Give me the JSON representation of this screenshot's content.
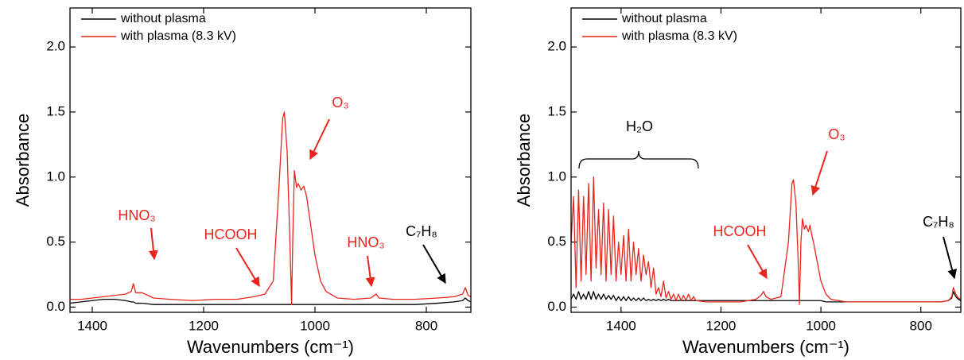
{
  "chart_data": [
    {
      "type": "line",
      "x_label": "Wavenumbers (cm⁻¹)",
      "y_label": "Absorbance",
      "xlim": [
        1440,
        720
      ],
      "xticks": [
        1400,
        1200,
        1000,
        800
      ],
      "ylim": [
        -0.04,
        2.3
      ],
      "yticks": [
        {
          "value": 0,
          "label": "0.0"
        },
        0.5,
        {
          "value": 1,
          "label": "1.0"
        },
        1.5,
        {
          "value": 2,
          "label": "2.0"
        }
      ],
      "legend": "upper left",
      "annotations": [
        "HNO₃",
        "HCOOH",
        "O₃",
        "HNO₃",
        "C₇H₈"
      ],
      "x": [
        1440,
        1420,
        1400,
        1380,
        1360,
        1340,
        1330,
        1326,
        1322,
        1310,
        1290,
        1260,
        1220,
        1180,
        1140,
        1110,
        1090,
        1075,
        1065,
        1058,
        1055,
        1050,
        1045,
        1042,
        1040,
        1037,
        1033,
        1030,
        1025,
        1020,
        1015,
        1010,
        1000,
        990,
        980,
        960,
        930,
        900,
        890,
        885,
        860,
        820,
        780,
        750,
        735,
        730,
        725,
        720
      ],
      "series": [
        {
          "name": "without plasma",
          "color": "#000000",
          "values": [
            0.03,
            0.04,
            0.05,
            0.06,
            0.06,
            0.05,
            0.04,
            0.04,
            0.03,
            0.03,
            0.02,
            0.02,
            0.02,
            0.02,
            0.02,
            0.02,
            0.02,
            0.02,
            0.02,
            0.02,
            0.02,
            0.02,
            0.02,
            0.02,
            0.02,
            0.02,
            0.02,
            0.02,
            0.02,
            0.02,
            0.02,
            0.02,
            0.02,
            0.02,
            0.02,
            0.02,
            0.02,
            0.02,
            0.02,
            0.02,
            0.02,
            0.02,
            0.03,
            0.04,
            0.05,
            0.07,
            0.05,
            0.04
          ]
        },
        {
          "name": "with plasma (8.3 kV)",
          "color": "#e8241c",
          "values": [
            0.06,
            0.06,
            0.07,
            0.08,
            0.09,
            0.1,
            0.12,
            0.18,
            0.11,
            0.11,
            0.07,
            0.06,
            0.05,
            0.06,
            0.06,
            0.08,
            0.1,
            0.2,
            0.9,
            1.45,
            1.5,
            1.2,
            0.5,
            0.02,
            0.5,
            1.05,
            0.92,
            0.95,
            0.9,
            0.93,
            0.85,
            0.7,
            0.4,
            0.2,
            0.12,
            0.07,
            0.06,
            0.07,
            0.1,
            0.07,
            0.06,
            0.06,
            0.07,
            0.08,
            0.1,
            0.15,
            0.09,
            0.08
          ]
        }
      ]
    },
    {
      "type": "line",
      "x_label": "Wavenumbers (cm⁻¹)",
      "y_label": "Absorbance",
      "xlim": [
        1500,
        720
      ],
      "xticks": [
        1400,
        1200,
        1000,
        800
      ],
      "ylim": [
        -0.04,
        2.3
      ],
      "yticks": [
        {
          "value": 0,
          "label": "0.0"
        },
        0.5,
        {
          "value": 1,
          "label": "1.0"
        },
        1.5,
        {
          "value": 2,
          "label": "2.0"
        }
      ],
      "legend": "upper left",
      "annotations": [
        "H₂O",
        "HCOOH",
        "O₃",
        "C₇H₈"
      ],
      "x": [
        1500,
        1495,
        1490,
        1485,
        1480,
        1475,
        1470,
        1465,
        1460,
        1455,
        1450,
        1445,
        1440,
        1435,
        1430,
        1425,
        1420,
        1415,
        1410,
        1405,
        1400,
        1395,
        1390,
        1385,
        1380,
        1375,
        1370,
        1365,
        1360,
        1355,
        1350,
        1345,
        1340,
        1335,
        1330,
        1325,
        1320,
        1315,
        1310,
        1305,
        1300,
        1295,
        1290,
        1285,
        1280,
        1275,
        1270,
        1265,
        1260,
        1255,
        1250,
        1230,
        1200,
        1160,
        1130,
        1120,
        1115,
        1110,
        1100,
        1080,
        1065,
        1058,
        1055,
        1050,
        1045,
        1043,
        1040,
        1037,
        1033,
        1030,
        1025,
        1022,
        1018,
        1015,
        1010,
        1000,
        990,
        980,
        950,
        900,
        850,
        800,
        760,
        745,
        738,
        735,
        730,
        725,
        720
      ],
      "series": [
        {
          "name": "without plasma",
          "color": "#000000",
          "values": [
            0.06,
            0.1,
            0.06,
            0.12,
            0.06,
            0.1,
            0.06,
            0.12,
            0.06,
            0.12,
            0.06,
            0.1,
            0.06,
            0.1,
            0.06,
            0.09,
            0.06,
            0.09,
            0.05,
            0.08,
            0.05,
            0.08,
            0.05,
            0.08,
            0.05,
            0.07,
            0.05,
            0.07,
            0.05,
            0.07,
            0.05,
            0.06,
            0.05,
            0.06,
            0.05,
            0.06,
            0.05,
            0.06,
            0.05,
            0.06,
            0.05,
            0.05,
            0.05,
            0.05,
            0.05,
            0.05,
            0.05,
            0.05,
            0.05,
            0.05,
            0.05,
            0.05,
            0.05,
            0.05,
            0.05,
            0.05,
            0.05,
            0.05,
            0.05,
            0.05,
            0.05,
            0.05,
            0.05,
            0.05,
            0.05,
            0.05,
            0.05,
            0.05,
            0.05,
            0.05,
            0.05,
            0.05,
            0.05,
            0.05,
            0.05,
            0.05,
            0.04,
            0.04,
            0.04,
            0.04,
            0.04,
            0.04,
            0.04,
            0.05,
            0.07,
            0.12,
            0.08,
            0.06,
            0.05
          ]
        },
        {
          "name": "with plasma (8.3 kV)",
          "color": "#e8241c",
          "values": [
            0.5,
            0.85,
            0.15,
            0.9,
            0.2,
            0.85,
            0.25,
            0.95,
            0.2,
            1.0,
            0.3,
            0.75,
            0.25,
            0.8,
            0.2,
            0.75,
            0.25,
            0.7,
            0.2,
            0.5,
            0.25,
            0.55,
            0.2,
            0.6,
            0.2,
            0.5,
            0.25,
            0.45,
            0.2,
            0.4,
            0.25,
            0.35,
            0.15,
            0.3,
            0.1,
            0.15,
            0.08,
            0.2,
            0.07,
            0.12,
            0.06,
            0.1,
            0.05,
            0.1,
            0.05,
            0.09,
            0.05,
            0.1,
            0.05,
            0.08,
            0.05,
            0.04,
            0.04,
            0.04,
            0.06,
            0.09,
            0.12,
            0.08,
            0.06,
            0.08,
            0.5,
            0.95,
            0.98,
            0.8,
            0.3,
            0.02,
            0.5,
            0.68,
            0.6,
            0.63,
            0.58,
            0.63,
            0.55,
            0.5,
            0.4,
            0.2,
            0.1,
            0.06,
            0.04,
            0.04,
            0.04,
            0.04,
            0.04,
            0.05,
            0.08,
            0.15,
            0.1,
            0.07,
            0.06
          ]
        }
      ]
    }
  ]
}
